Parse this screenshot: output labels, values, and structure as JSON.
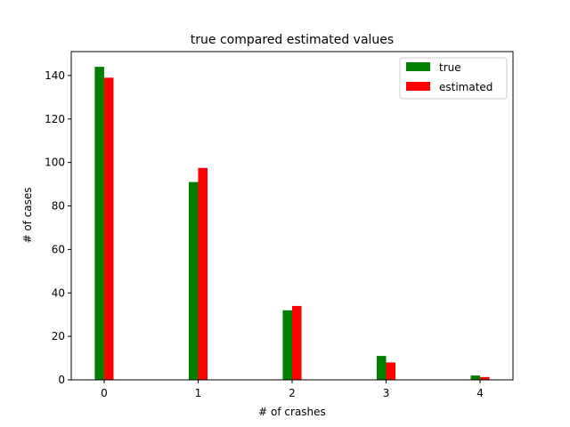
{
  "chart_data": {
    "type": "bar",
    "title": "true compared estimated values",
    "xlabel": "# of crashes",
    "ylabel": "# of cases",
    "categories": [
      "0",
      "1",
      "2",
      "3",
      "4"
    ],
    "series": [
      {
        "name": "true",
        "color": "#008000",
        "values": [
          144,
          91,
          32,
          11,
          2
        ]
      },
      {
        "name": "estimated",
        "color": "#ff0000",
        "values": [
          139,
          97.5,
          34,
          8,
          1.3
        ]
      }
    ],
    "xlim": [
      -0.35,
      4.35
    ],
    "ylim": [
      0,
      151
    ],
    "yticks": [
      0,
      20,
      40,
      60,
      80,
      100,
      120,
      140
    ],
    "xticks": [
      0,
      1,
      2,
      3,
      4
    ],
    "grid": false,
    "legend_position": "top-right"
  }
}
